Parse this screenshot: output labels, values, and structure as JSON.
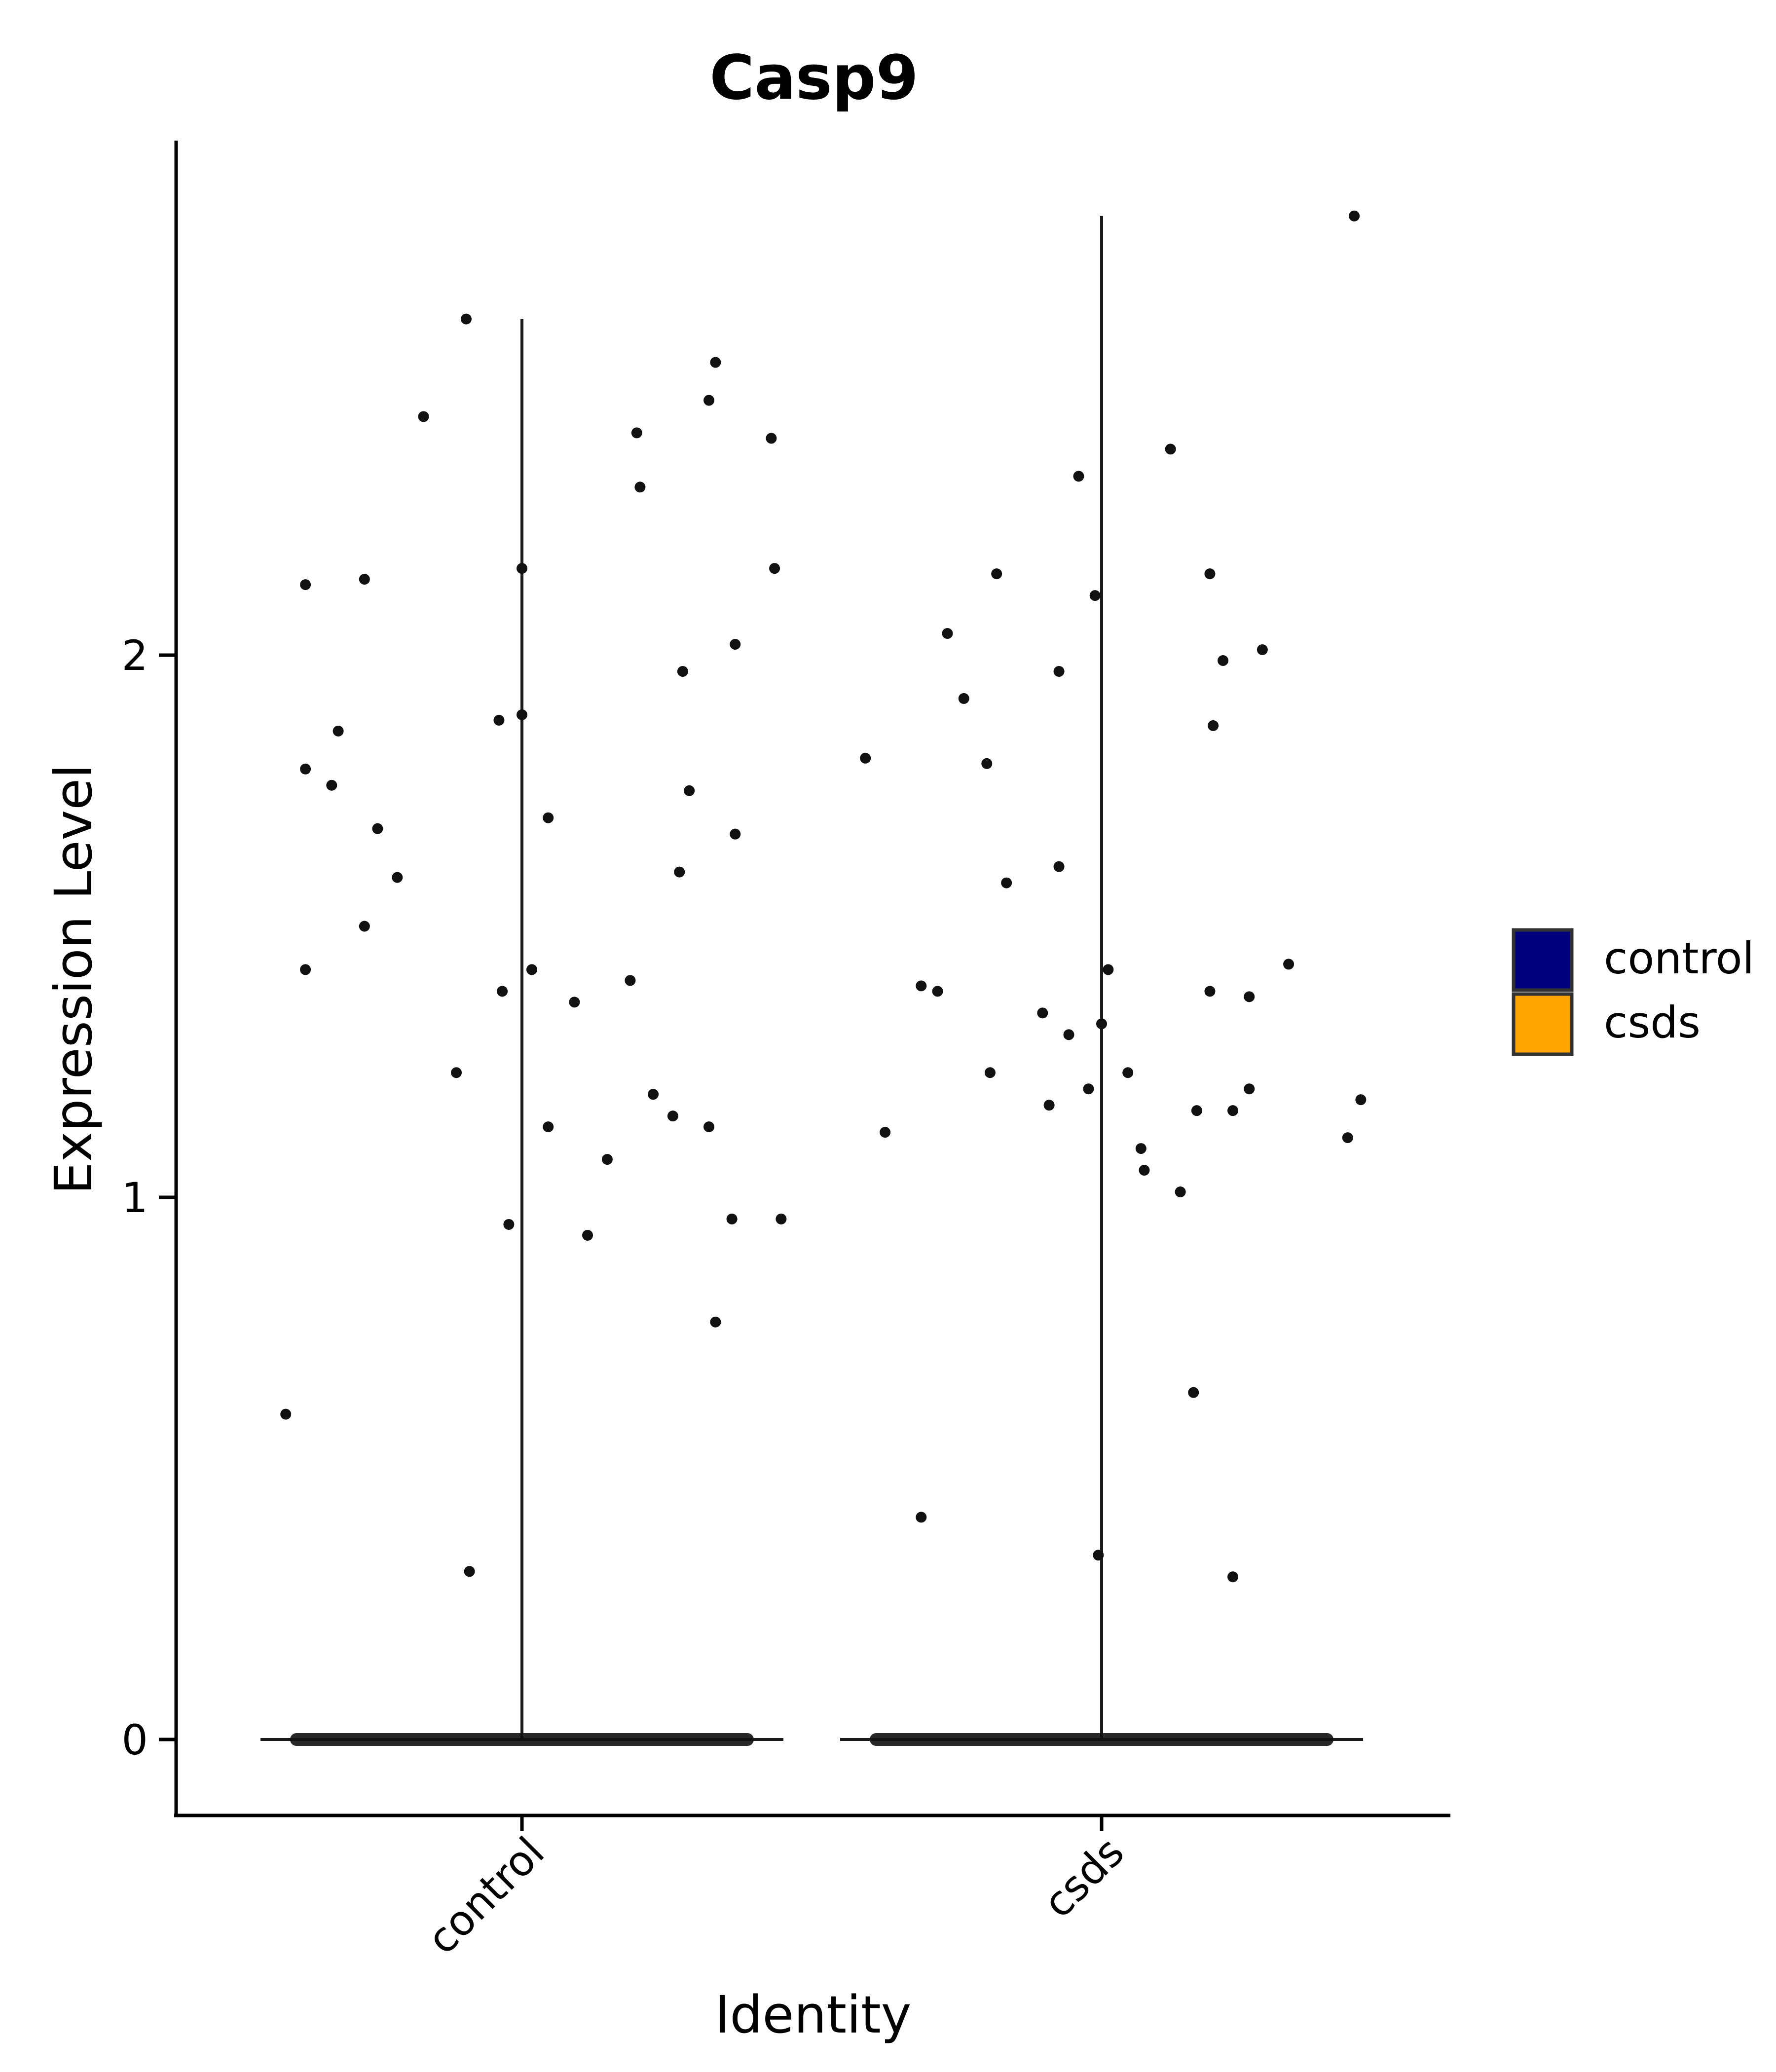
{
  "chart_data": {
    "type": "violin",
    "title": "Casp9",
    "xlabel": "Identity",
    "ylabel": "Expression Level",
    "categories": [
      "control",
      "csds"
    ],
    "yticks": [
      0,
      1,
      2
    ],
    "ylim": [
      -0.14,
      2.97
    ],
    "grid": false,
    "legend": {
      "position": "right",
      "entries": [
        {
          "label": "control",
          "color": "#00007F"
        },
        {
          "label": "csds",
          "color": "#FFA500"
        }
      ]
    },
    "series": [
      {
        "category": "control",
        "max": 2.62,
        "zero_count_note": "",
        "points": [
          {
            "x": -0.36,
            "y": 0.6
          },
          {
            "x": -0.33,
            "y": 2.13
          },
          {
            "x": -0.33,
            "y": 1.79
          },
          {
            "x": -0.33,
            "y": 1.42
          },
          {
            "x": -0.29,
            "y": 1.76
          },
          {
            "x": -0.28,
            "y": 1.86
          },
          {
            "x": -0.24,
            "y": 2.14
          },
          {
            "x": -0.24,
            "y": 1.5
          },
          {
            "x": -0.22,
            "y": 1.68
          },
          {
            "x": -0.19,
            "y": 1.59
          },
          {
            "x": -0.15,
            "y": 2.44
          },
          {
            "x": -0.1,
            "y": 1.23
          },
          {
            "x": -0.085,
            "y": 2.62
          },
          {
            "x": -0.08,
            "y": 0.31
          },
          {
            "x": -0.035,
            "y": 1.88
          },
          {
            "x": -0.03,
            "y": 1.38
          },
          {
            "x": -0.02,
            "y": 0.95
          },
          {
            "x": 0.0,
            "y": 2.16
          },
          {
            "x": 0.0,
            "y": 1.89
          },
          {
            "x": 0.015,
            "y": 1.42
          },
          {
            "x": 0.04,
            "y": 1.7
          },
          {
            "x": 0.04,
            "y": 1.13
          },
          {
            "x": 0.08,
            "y": 1.36
          },
          {
            "x": 0.1,
            "y": 0.93
          },
          {
            "x": 0.13,
            "y": 1.07
          },
          {
            "x": 0.165,
            "y": 1.4
          },
          {
            "x": 0.175,
            "y": 2.41
          },
          {
            "x": 0.18,
            "y": 2.31
          },
          {
            "x": 0.2,
            "y": 1.19
          },
          {
            "x": 0.23,
            "y": 1.15
          },
          {
            "x": 0.24,
            "y": 1.6
          },
          {
            "x": 0.245,
            "y": 1.97
          },
          {
            "x": 0.255,
            "y": 1.75
          },
          {
            "x": 0.285,
            "y": 2.47
          },
          {
            "x": 0.285,
            "y": 1.13
          },
          {
            "x": 0.295,
            "y": 2.54
          },
          {
            "x": 0.295,
            "y": 0.77
          },
          {
            "x": 0.32,
            "y": 0.96
          },
          {
            "x": 0.325,
            "y": 2.02
          },
          {
            "x": 0.325,
            "y": 1.67
          },
          {
            "x": 0.38,
            "y": 2.4
          },
          {
            "x": 0.385,
            "y": 2.16
          },
          {
            "x": 0.395,
            "y": 0.96
          }
        ]
      },
      {
        "category": "csds",
        "max": 2.81,
        "points": [
          {
            "x": -0.36,
            "y": 1.81
          },
          {
            "x": -0.33,
            "y": 1.12
          },
          {
            "x": -0.275,
            "y": 1.39
          },
          {
            "x": -0.275,
            "y": 0.41
          },
          {
            "x": -0.25,
            "y": 1.38
          },
          {
            "x": -0.235,
            "y": 2.04
          },
          {
            "x": -0.21,
            "y": 1.92
          },
          {
            "x": -0.175,
            "y": 1.8
          },
          {
            "x": -0.17,
            "y": 1.23
          },
          {
            "x": -0.16,
            "y": 2.15
          },
          {
            "x": -0.145,
            "y": 1.58
          },
          {
            "x": -0.09,
            "y": 1.34
          },
          {
            "x": -0.08,
            "y": 1.17
          },
          {
            "x": -0.065,
            "y": 1.97
          },
          {
            "x": -0.065,
            "y": 1.61
          },
          {
            "x": -0.05,
            "y": 1.3
          },
          {
            "x": -0.035,
            "y": 2.33
          },
          {
            "x": -0.02,
            "y": 1.2
          },
          {
            "x": -0.01,
            "y": 2.11
          },
          {
            "x": -0.005,
            "y": 0.34
          },
          {
            "x": 0.0,
            "y": 1.32
          },
          {
            "x": 0.01,
            "y": 1.42
          },
          {
            "x": 0.04,
            "y": 1.23
          },
          {
            "x": 0.06,
            "y": 1.09
          },
          {
            "x": 0.065,
            "y": 1.05
          },
          {
            "x": 0.105,
            "y": 2.38
          },
          {
            "x": 0.12,
            "y": 1.01
          },
          {
            "x": 0.14,
            "y": 0.64
          },
          {
            "x": 0.145,
            "y": 1.16
          },
          {
            "x": 0.165,
            "y": 2.15
          },
          {
            "x": 0.165,
            "y": 1.38
          },
          {
            "x": 0.17,
            "y": 1.87
          },
          {
            "x": 0.185,
            "y": 1.99
          },
          {
            "x": 0.2,
            "y": 1.16
          },
          {
            "x": 0.2,
            "y": 0.3
          },
          {
            "x": 0.225,
            "y": 1.37
          },
          {
            "x": 0.225,
            "y": 1.2
          },
          {
            "x": 0.245,
            "y": 2.01
          },
          {
            "x": 0.285,
            "y": 1.43
          },
          {
            "x": 0.375,
            "y": 1.11
          },
          {
            "x": 0.385,
            "y": 2.81
          },
          {
            "x": 0.395,
            "y": 1.18
          }
        ]
      }
    ]
  }
}
